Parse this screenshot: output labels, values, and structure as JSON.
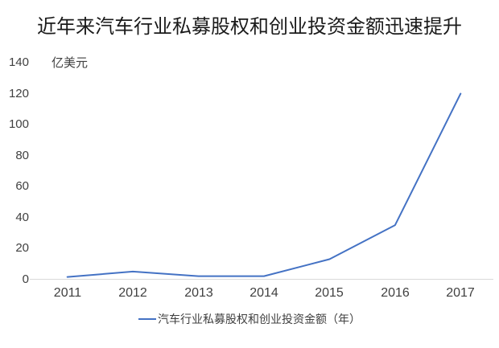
{
  "title": "近年来汽车行业私募股权和创业投资金额迅速提升",
  "chart_data": {
    "type": "line",
    "title": "近年来汽车行业私募股权和创业投资金额迅速提升",
    "unit_label": "亿美元",
    "categories": [
      "2011",
      "2012",
      "2013",
      "2014",
      "2015",
      "2016",
      "2017"
    ],
    "series": [
      {
        "name": "汽车行业私募股权和创业投资金额（年）",
        "values": [
          1.5,
          5,
          2,
          2,
          13,
          35,
          120
        ]
      }
    ],
    "ylim": [
      0,
      140
    ],
    "yticks": [
      0,
      20,
      40,
      60,
      80,
      100,
      120,
      140
    ],
    "xlabel": "",
    "ylabel": "亿美元",
    "grid": false,
    "legend_position": "bottom",
    "colors": {
      "line": "#4472C4",
      "axis_line": "#D9D9D9",
      "tick_text": "#404040",
      "title_text": "#1a1a1a"
    }
  },
  "legend": {
    "label": "汽车行业私募股权和创业投资金额（年）"
  }
}
